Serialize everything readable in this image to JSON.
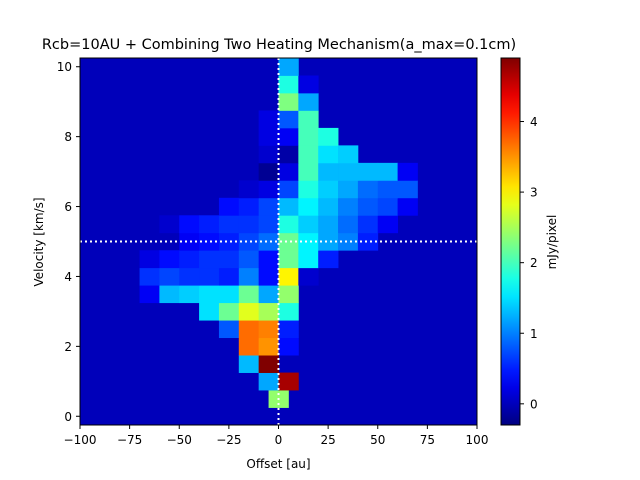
{
  "chart_data": {
    "type": "heatmap",
    "title": "Rcb=10AU + Combining Two Heating Mechanism(a_max=0.1cm)",
    "xlabel": "Offset [au]",
    "ylabel": "Velocity [km/s]",
    "colorbar_label": "mJy/pixel",
    "colormap": "jet",
    "xlim": [
      -100,
      100
    ],
    "ylim": [
      -0.25,
      10.25
    ],
    "clim": [
      -0.3,
      4.9
    ],
    "x_ticks": [
      -100,
      -75,
      -50,
      -25,
      0,
      25,
      50,
      75,
      100
    ],
    "x_tick_labels": [
      "−100",
      "−75",
      "−50",
      "−25",
      "0",
      "25",
      "50",
      "75",
      "100"
    ],
    "y_ticks": [
      0,
      2,
      4,
      6,
      8,
      10
    ],
    "y_tick_labels": [
      "0",
      "2",
      "4",
      "6",
      "8",
      "10"
    ],
    "colorbar_ticks": [
      0,
      1,
      2,
      3,
      4
    ],
    "colorbar_tick_labels": [
      "0",
      "1",
      "2",
      "3",
      "4"
    ],
    "x_centers_start": -95,
    "x_step": 10,
    "y_centers_start": 0,
    "y_step": 0.5,
    "background_value": 0.0,
    "cells": [
      [
        0.5,
        0,
        2.4
      ],
      [
        1.0,
        -5,
        1.2
      ],
      [
        1.0,
        5,
        4.7
      ],
      [
        1.5,
        -15,
        1.3
      ],
      [
        1.5,
        -5,
        4.9
      ],
      [
        2.0,
        -15,
        3.7
      ],
      [
        2.0,
        -5,
        3.5
      ],
      [
        2.0,
        5,
        0.4
      ],
      [
        2.5,
        -25,
        0.8
      ],
      [
        2.5,
        -15,
        3.7
      ],
      [
        2.5,
        -5,
        3.6
      ],
      [
        2.5,
        5,
        0.5
      ],
      [
        3.0,
        -35,
        1.5
      ],
      [
        3.0,
        -25,
        2.2
      ],
      [
        3.0,
        -15,
        2.8
      ],
      [
        3.0,
        -5,
        2.5
      ],
      [
        3.0,
        5,
        1.8
      ],
      [
        3.5,
        -65,
        0.3
      ],
      [
        3.5,
        -55,
        1.3
      ],
      [
        3.5,
        -45,
        1.4
      ],
      [
        3.5,
        -35,
        1.5
      ],
      [
        3.5,
        -25,
        1.5
      ],
      [
        3.5,
        -15,
        2.2
      ],
      [
        3.5,
        -5,
        1.2
      ],
      [
        3.5,
        5,
        2.4
      ],
      [
        4.0,
        -65,
        0.6
      ],
      [
        4.0,
        -55,
        0.7
      ],
      [
        4.0,
        -45,
        0.6
      ],
      [
        4.0,
        -35,
        0.6
      ],
      [
        4.0,
        -25,
        0.5
      ],
      [
        4.0,
        -15,
        1.0
      ],
      [
        4.0,
        -5,
        0.4
      ],
      [
        4.0,
        5,
        3.0
      ],
      [
        4.0,
        15,
        0.1
      ],
      [
        4.5,
        -65,
        0.2
      ],
      [
        4.5,
        -55,
        0.4
      ],
      [
        4.5,
        -45,
        0.5
      ],
      [
        4.5,
        -35,
        0.6
      ],
      [
        4.5,
        -25,
        0.6
      ],
      [
        4.5,
        -15,
        0.8
      ],
      [
        4.5,
        -5,
        0.4
      ],
      [
        4.5,
        5,
        2.2
      ],
      [
        4.5,
        15,
        1.6
      ],
      [
        4.5,
        25,
        0.5
      ],
      [
        5.0,
        -45,
        0.3
      ],
      [
        5.0,
        -35,
        0.4
      ],
      [
        5.0,
        -25,
        0.5
      ],
      [
        5.0,
        -15,
        0.7
      ],
      [
        5.0,
        -5,
        0.9
      ],
      [
        5.0,
        5,
        2.2
      ],
      [
        5.0,
        15,
        1.6
      ],
      [
        5.0,
        25,
        1.2
      ],
      [
        5.0,
        35,
        1.0
      ],
      [
        5.0,
        45,
        0.5
      ],
      [
        5.5,
        -55,
        0.1
      ],
      [
        5.5,
        -45,
        0.4
      ],
      [
        5.5,
        -35,
        0.5
      ],
      [
        5.5,
        -25,
        0.6
      ],
      [
        5.5,
        -15,
        0.6
      ],
      [
        5.5,
        -5,
        0.7
      ],
      [
        5.5,
        5,
        1.8
      ],
      [
        5.5,
        15,
        1.4
      ],
      [
        5.5,
        25,
        1.2
      ],
      [
        5.5,
        35,
        0.9
      ],
      [
        5.5,
        45,
        0.6
      ],
      [
        5.5,
        55,
        0.3
      ],
      [
        6.0,
        -25,
        0.4
      ],
      [
        6.0,
        -15,
        0.5
      ],
      [
        6.0,
        -5,
        0.7
      ],
      [
        6.0,
        5,
        1.3
      ],
      [
        6.0,
        15,
        1.6
      ],
      [
        6.0,
        25,
        1.3
      ],
      [
        6.0,
        35,
        1.0
      ],
      [
        6.0,
        45,
        0.8
      ],
      [
        6.0,
        55,
        0.7
      ],
      [
        6.0,
        65,
        0.3
      ],
      [
        6.5,
        -15,
        0.1
      ],
      [
        6.5,
        -5,
        0.2
      ],
      [
        6.5,
        5,
        0.7
      ],
      [
        6.5,
        15,
        1.8
      ],
      [
        6.5,
        25,
        1.4
      ],
      [
        6.5,
        35,
        1.2
      ],
      [
        6.5,
        45,
        0.9
      ],
      [
        6.5,
        55,
        0.8
      ],
      [
        6.5,
        65,
        0.8
      ],
      [
        7.0,
        -5,
        -0.2
      ],
      [
        7.0,
        5,
        0.2
      ],
      [
        7.0,
        15,
        2.0
      ],
      [
        7.0,
        25,
        1.3
      ],
      [
        7.0,
        35,
        1.3
      ],
      [
        7.0,
        45,
        1.3
      ],
      [
        7.0,
        55,
        1.3
      ],
      [
        7.0,
        65,
        0.3
      ],
      [
        7.5,
        -5,
        0.1
      ],
      [
        7.5,
        5,
        -0.1
      ],
      [
        7.5,
        15,
        2.0
      ],
      [
        7.5,
        25,
        1.5
      ],
      [
        7.5,
        35,
        1.4
      ],
      [
        8.0,
        -5,
        0.2
      ],
      [
        8.0,
        5,
        0.3
      ],
      [
        8.0,
        15,
        2.0
      ],
      [
        8.0,
        25,
        1.8
      ],
      [
        8.5,
        -5,
        0.2
      ],
      [
        8.5,
        5,
        0.8
      ],
      [
        8.5,
        15,
        2.0
      ],
      [
        9.0,
        5,
        2.3
      ],
      [
        9.0,
        15,
        1.2
      ],
      [
        9.5,
        5,
        1.8
      ],
      [
        9.5,
        15,
        0.2
      ],
      [
        10.0,
        5,
        1.2
      ]
    ],
    "reference_lines": [
      {
        "axis": "x",
        "value": 0,
        "style": "dotted",
        "color": "#ffffff"
      },
      {
        "axis": "y",
        "value": 5,
        "style": "dotted",
        "color": "#ffffff"
      }
    ]
  }
}
